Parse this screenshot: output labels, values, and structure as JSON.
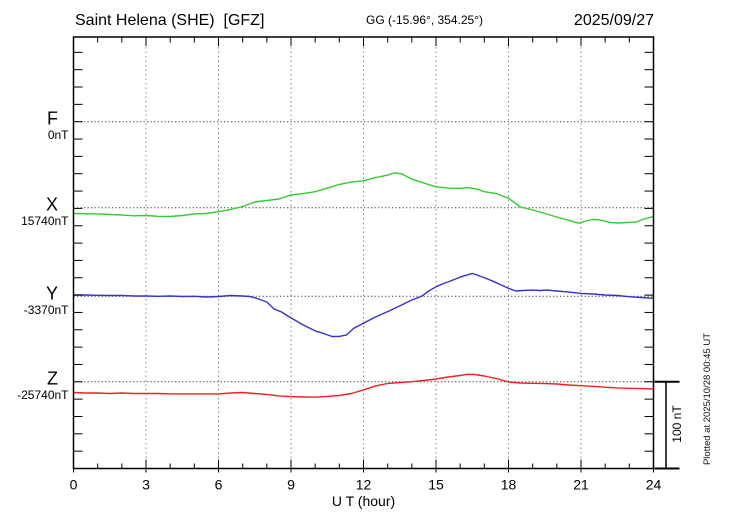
{
  "header": {
    "title": "Saint Helena (SHE)  [GFZ]",
    "coordinates": "GG (-15.96°, 354.25°)",
    "date": "2025/09/27"
  },
  "axis": {
    "xlabel": "U T (hour)",
    "x_ticks": [
      "0",
      "3",
      "6",
      "9",
      "12",
      "15",
      "18",
      "21",
      "24"
    ]
  },
  "components": [
    {
      "id": "F",
      "label": "F",
      "value": "0nT",
      "color": "#FFA500"
    },
    {
      "id": "X",
      "label": "X",
      "value": "15740nT",
      "color": "#33CC33"
    },
    {
      "id": "Y",
      "label": "Y",
      "value": "-3370nT",
      "color": "#3333CC"
    },
    {
      "id": "Z",
      "label": "Z",
      "value": "-25740nT",
      "color": "#EE2222"
    }
  ],
  "scale_bar": {
    "label": "100 nT"
  },
  "footnote": "Plotted at 2025/10/28 00:45 UT",
  "chart_data": {
    "type": "line",
    "title": "Saint Helena (SHE) [GFZ] magnetogram, 2025/09/27",
    "xlabel": "U T (hour)",
    "x_range": [
      0,
      24
    ],
    "x_tick_major_hours": 3,
    "x_tick_minor_hours": 1,
    "y_tick_nT": 20,
    "scale_bar_nT": 100,
    "grid": "dotted vertical lines every 3 h; dotted horizontal baseline per component",
    "legend_position": "left margin, component letter above value at each baseline",
    "series": [
      {
        "name": "F",
        "baseline_nT": 0,
        "plotted": false,
        "x": [],
        "offsets_nT": []
      },
      {
        "name": "X",
        "baseline_nT": 15740,
        "plotted": true,
        "x": [
          0,
          1,
          2,
          2.5,
          3,
          3.5,
          4,
          4.5,
          5,
          5.5,
          6,
          6.5,
          7,
          7.5,
          8,
          8.5,
          9,
          9.5,
          10,
          10.5,
          11,
          11.5,
          12,
          12.5,
          13,
          13.3,
          13.6,
          14,
          14.5,
          15,
          15.5,
          16,
          16.3,
          16.7,
          17,
          17.5,
          18,
          18.5,
          19,
          19.5,
          20,
          20.5,
          20.9,
          21.2,
          21.5,
          21.8,
          22.2,
          22.5,
          23,
          23.3,
          23.6,
          24
        ],
        "offsets_nT": [
          -6.7,
          -7.2,
          -8.4,
          -9.3,
          -9.0,
          -9.9,
          -10.1,
          -9.0,
          -7.2,
          -6.7,
          -4.6,
          -2.1,
          1.4,
          6.6,
          8.3,
          10.0,
          14.6,
          16.3,
          18.4,
          22.6,
          26.9,
          29.5,
          31.0,
          34.7,
          37.6,
          40.2,
          38.7,
          33.0,
          28.4,
          24.1,
          22.6,
          22.3,
          23.2,
          21.5,
          18.4,
          16.3,
          10.8,
          0.8,
          -2.6,
          -6.7,
          -10.7,
          -14.7,
          -17.9,
          -15.3,
          -13.6,
          -14.1,
          -17.0,
          -17.6,
          -17.0,
          -16.4,
          -13.0,
          -10.3
        ]
      },
      {
        "name": "Y",
        "baseline_nT": -3370,
        "plotted": true,
        "x": [
          0,
          0.5,
          1,
          1.5,
          2,
          2.5,
          3,
          3.5,
          4,
          4.5,
          5,
          5.5,
          6,
          6.5,
          7,
          7.3,
          7.6,
          8,
          8.3,
          8.6,
          9,
          9.5,
          10,
          10.3,
          10.7,
          11,
          11.3,
          11.6,
          12,
          12.5,
          13,
          13.5,
          14,
          14.4,
          14.7,
          15,
          15.3,
          15.6,
          16,
          16.5,
          17,
          17.4,
          17.7,
          18,
          18.3,
          18.6,
          19,
          19.3,
          19.6,
          20,
          20.5,
          21,
          21.5,
          22,
          22.5,
          23,
          23.5,
          24
        ],
        "offsets_nT": [
          1.5,
          1.5,
          1.1,
          0.9,
          0.9,
          0.3,
          0.3,
          0.0,
          0.3,
          -0.2,
          0.0,
          -0.8,
          -0.2,
          0.9,
          0.3,
          -0.2,
          -2.5,
          -6.6,
          -14.6,
          -18.0,
          -24.9,
          -33.0,
          -39.9,
          -42.5,
          -46.4,
          -46.2,
          -44.5,
          -36.8,
          -31.0,
          -23.8,
          -17.7,
          -11.1,
          -4.3,
          0.0,
          6.1,
          11.0,
          14.7,
          17.6,
          22.2,
          26.4,
          21.6,
          16.8,
          13.0,
          9.2,
          6.1,
          6.7,
          7.2,
          6.7,
          7.2,
          6.1,
          4.9,
          3.4,
          2.6,
          1.5,
          0.9,
          -0.5,
          -1.4,
          -2.3
        ]
      },
      {
        "name": "Z",
        "baseline_nT": -25740,
        "plotted": true,
        "x": [
          0,
          0.5,
          1,
          1.5,
          2,
          2.5,
          3,
          3.5,
          4,
          4.5,
          5,
          5.5,
          6,
          6.5,
          7,
          7.5,
          8,
          8.5,
          9,
          9.5,
          10,
          10.5,
          11,
          11.5,
          12,
          12.5,
          13,
          13.5,
          14,
          14.5,
          15,
          15.5,
          16,
          16.3,
          16.6,
          17,
          17.5,
          18,
          18.5,
          19,
          19.5,
          20,
          20.5,
          21,
          21.5,
          22,
          22.5,
          23,
          23.5,
          24
        ],
        "offsets_nT": [
          -12.4,
          -13.0,
          -13.0,
          -13.6,
          -13.0,
          -13.6,
          -13.6,
          -13.6,
          -14.1,
          -14.1,
          -14.1,
          -14.1,
          -14.1,
          -13.0,
          -12.4,
          -13.6,
          -14.7,
          -16.4,
          -17.2,
          -17.6,
          -17.9,
          -17.0,
          -15.9,
          -13.6,
          -9.5,
          -4.9,
          -2.1,
          -0.9,
          0.0,
          1.4,
          3.1,
          5.4,
          7.1,
          8.5,
          8.3,
          6.6,
          3.7,
          -0.3,
          -1.5,
          -1.8,
          -2.1,
          -2.6,
          -3.8,
          -4.6,
          -5.3,
          -6.4,
          -7.2,
          -7.6,
          -8.0,
          -8.4
        ]
      }
    ]
  }
}
